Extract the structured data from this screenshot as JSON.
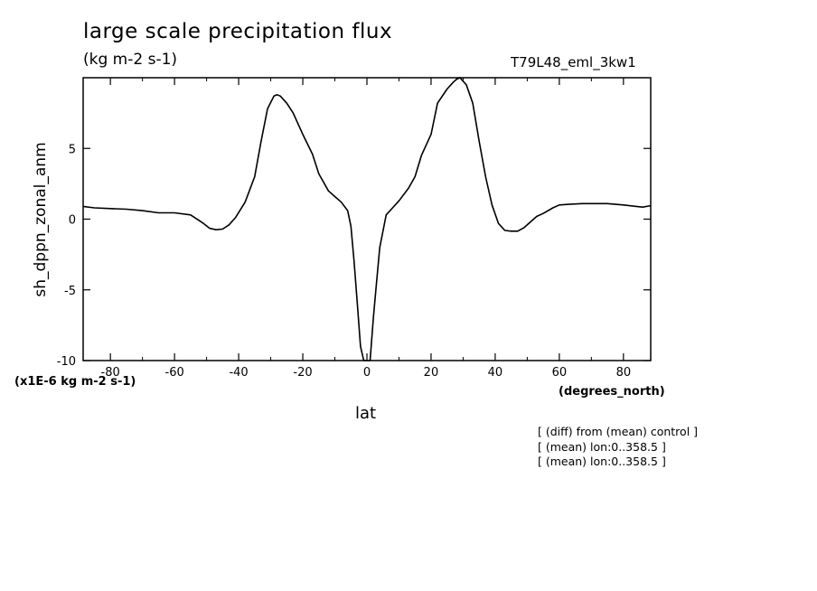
{
  "chart_data": {
    "type": "line",
    "title": "large scale precipitation flux",
    "subtitle": "(kg m-2 s-1)",
    "run_id": "T79L48_eml_3kw1",
    "xlabel": "lat",
    "xunits": "(degrees_north)",
    "ylabel": "sh_dppn_zonal_anm",
    "yscale_label": "(x1E-6 kg m-2 s-1)",
    "xlim": [
      -88.5,
      88.5
    ],
    "ylim": [
      -10,
      10
    ],
    "xticks": [
      -80,
      -60,
      -40,
      -20,
      0,
      20,
      40,
      60,
      80
    ],
    "xtick_labels": [
      "-80",
      "-60",
      "-40",
      "-20",
      "0",
      "20",
      "40",
      "60",
      "80"
    ],
    "yticks": [
      -10,
      -5,
      0,
      5
    ],
    "ytick_labels": [
      "-10",
      "-5",
      "0",
      "5"
    ],
    "notes": [
      "[ (diff) from (mean) control ]",
      "[ (mean) lon:0..358.5 ]",
      "[ (mean) lon:0..358.5 ]"
    ],
    "series": [
      {
        "x": [
          -88.5,
          -85,
          -80,
          -75,
          -70,
          -65,
          -60,
          -55,
          -51,
          -49,
          -47,
          -45,
          -43,
          -41,
          -38,
          -35,
          -33,
          -31,
          -29,
          -28,
          -27,
          -25,
          -23,
          -20,
          -17,
          -15,
          -12,
          -10,
          -8,
          -6,
          -5,
          -4,
          -3,
          -2,
          -1,
          0,
          1,
          2,
          3,
          4,
          6,
          8,
          10,
          13,
          15,
          17,
          20,
          22,
          25,
          27,
          28,
          29,
          31,
          33,
          35,
          37,
          39,
          41,
          43,
          45,
          47,
          49,
          51,
          53,
          55,
          58,
          60,
          63,
          67,
          70,
          75,
          80,
          84,
          86,
          88.5
        ],
        "y": [
          0.9,
          0.8,
          0.75,
          0.7,
          0.6,
          0.45,
          0.45,
          0.3,
          -0.3,
          -0.65,
          -0.75,
          -0.7,
          -0.4,
          0.1,
          1.2,
          3.0,
          5.5,
          7.8,
          8.7,
          8.8,
          8.7,
          8.2,
          7.5,
          6.0,
          4.6,
          3.2,
          2.0,
          1.6,
          1.2,
          0.6,
          -0.5,
          -3.0,
          -6.0,
          -9.0,
          -10.0,
          -10.0,
          -10.0,
          -7.0,
          -4.5,
          -2.0,
          0.3,
          0.8,
          1.3,
          2.2,
          3.0,
          4.5,
          6.0,
          8.2,
          9.2,
          9.7,
          9.9,
          10.0,
          9.5,
          8.2,
          5.5,
          3.0,
          1.0,
          -0.3,
          -0.8,
          -0.85,
          -0.85,
          -0.6,
          -0.2,
          0.2,
          0.4,
          0.8,
          1.0,
          1.05,
          1.1,
          1.1,
          1.1,
          1.0,
          0.9,
          0.85,
          0.95
        ]
      }
    ]
  }
}
